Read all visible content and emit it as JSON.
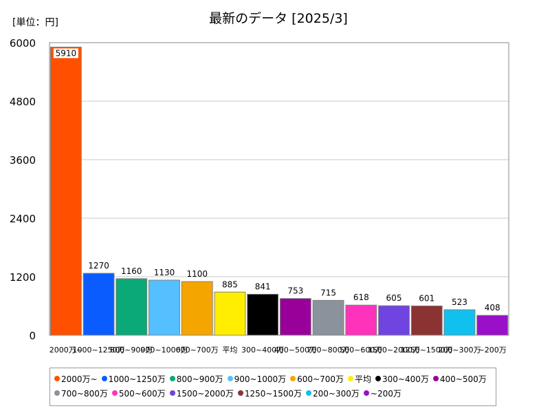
{
  "unit_label": "[単位：円]",
  "colors": {
    "2000万~": "#ff5000",
    "1000~1250万": "#0a5cff",
    "800~900万": "#0ba878",
    "900~1000万": "#55c0ff",
    "600~700万": "#f5a500",
    "平均": "#ffee00",
    "300~400万": "#000000",
    "400~500万": "#990099",
    "700~800万": "#8a929c",
    "500~600万": "#ff33bb",
    "1500~2000万": "#7044e0",
    "1250~1500万": "#8b3333",
    "200~300万": "#10c0ee",
    "~200万": "#9910c8"
  },
  "chart_data": {
    "type": "bar",
    "title": "最新のデータ [2025/3]",
    "categories": [
      "2000万~",
      "1000~1250万",
      "800~900万",
      "900~1000万",
      "600~700万",
      "平均",
      "300~400万",
      "400~500万",
      "700~800万",
      "500~600万",
      "1500~2000万",
      "1250~1500万",
      "200~300万",
      "~200万"
    ],
    "values": [
      5910,
      1270,
      1160,
      1130,
      1100,
      885,
      841,
      753,
      715,
      618,
      605,
      601,
      523,
      408
    ],
    "ylim": [
      0,
      6000
    ],
    "yticks": [
      0,
      1200,
      2400,
      3600,
      4800,
      6000
    ],
    "grid": true,
    "legend_position": "bottom"
  }
}
